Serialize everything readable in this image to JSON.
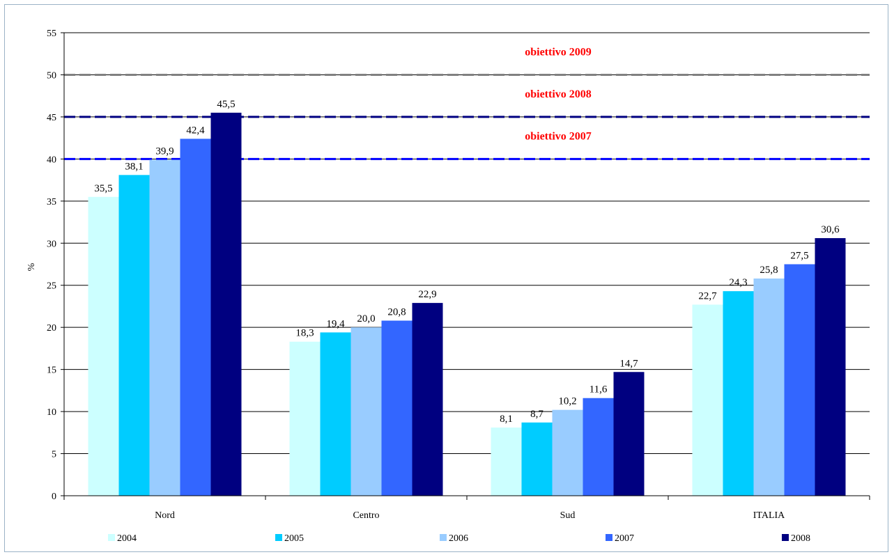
{
  "chart_data": {
    "type": "bar",
    "categories": [
      "Nord",
      "Centro",
      "Sud",
      "ITALIA"
    ],
    "series": [
      {
        "name": "2004",
        "color": "#ccffff",
        "values": [
          35.5,
          18.3,
          8.1,
          22.7
        ],
        "labels": [
          "35,5",
          "18,3",
          "8,1",
          "22,7"
        ]
      },
      {
        "name": "2005",
        "color": "#00ccff",
        "values": [
          38.1,
          19.4,
          8.7,
          24.3
        ],
        "labels": [
          "38,1",
          "19,4",
          "8,7",
          "24,3"
        ]
      },
      {
        "name": "2006",
        "color": "#99ccff",
        "values": [
          39.9,
          20.0,
          10.2,
          25.8
        ],
        "labels": [
          "39,9",
          "20,0",
          "10,2",
          "25,8"
        ]
      },
      {
        "name": "2007",
        "color": "#3366ff",
        "values": [
          42.4,
          20.8,
          11.6,
          27.5
        ],
        "labels": [
          "42,4",
          "20,8",
          "11,6",
          "27,5"
        ]
      },
      {
        "name": "2008",
        "color": "#000080",
        "values": [
          45.5,
          22.9,
          14.7,
          30.6
        ],
        "labels": [
          "45,5",
          "22,9",
          "14,7",
          "30,6"
        ]
      }
    ],
    "ylabel": "%",
    "ylim": [
      0,
      55
    ],
    "yticks": [
      0,
      5,
      10,
      15,
      20,
      25,
      30,
      35,
      40,
      45,
      50,
      55
    ],
    "grid": true,
    "legend_position": "bottom",
    "targets": [
      {
        "label": "obiettivo 2009",
        "value": 50,
        "color": "#808080"
      },
      {
        "label": "obiettivo 2008",
        "value": 45,
        "color": "#000080"
      },
      {
        "label": "obiettivo 2007",
        "value": 40,
        "color": "#0000ff"
      }
    ]
  }
}
